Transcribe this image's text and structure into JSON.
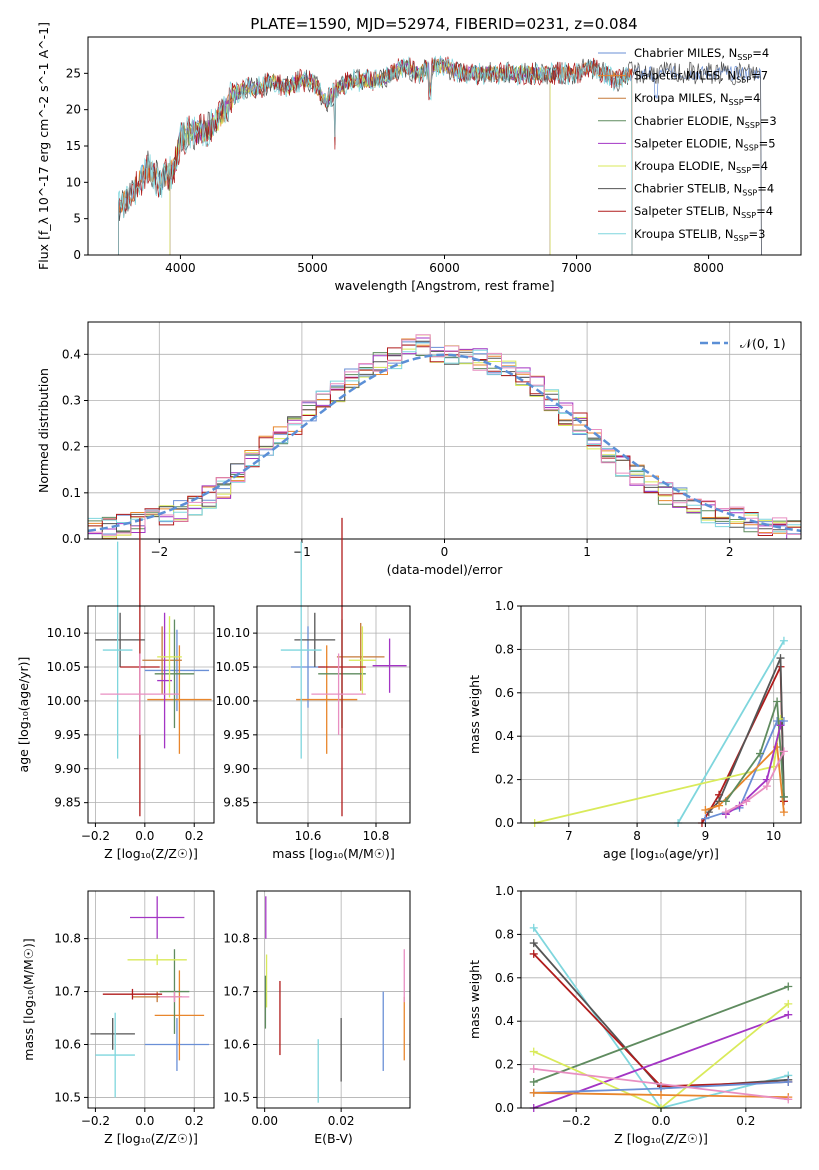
{
  "figure_title": "PLATE=1590, MJD=52974, FIBERID=0231, z=0.084",
  "colors": {
    "Chabrier MILES": "#6a8fd6",
    "Salpeter MILES": "#e8862c",
    "Kroupa MILES": "#c57a3a",
    "Chabrier ELODIE": "#5f8b5f",
    "Salpeter ELODIE": "#a335c4",
    "Kroupa ELODIE": "#d9ea5a",
    "Chabrier STELIB": "#555555",
    "Salpeter STELIB": "#b01c1c",
    "Kroupa STELIB": "#7fd6dd",
    "Normal": "#5b8fd6",
    "Pink": "#e88fc2"
  },
  "chart_data": [
    {
      "type": "line",
      "title": "PLATE=1590, MJD=52974, FIBERID=0231, z=0.084",
      "xlabel": "wavelength [Angstrom, rest frame]",
      "ylabel": "Flux [f_λ 10^-17 erg cm^-2 s^-1 A^-1]",
      "xlim": [
        3300,
        8700
      ],
      "ylim": [
        0,
        30
      ],
      "xticks": [
        "4000",
        "5000",
        "6000",
        "7000",
        "8000"
      ],
      "yticks": [
        "0",
        "5",
        "10",
        "15",
        "20",
        "25"
      ],
      "legend_placement": "right",
      "grid": false,
      "x": [
        3550,
        3650,
        3750,
        3850,
        3950,
        4000,
        4100,
        4200,
        4300,
        4400,
        4500,
        4600,
        4700,
        4800,
        4900,
        5000,
        5100,
        5200,
        5300,
        5400,
        5500,
        5600,
        5700,
        5800,
        5900,
        6000,
        6100,
        6200,
        6300,
        6400,
        6500,
        6600,
        6700,
        6800,
        6900,
        7000,
        7100,
        7200,
        7300,
        7400
      ],
      "flux": [
        7,
        9,
        12,
        10,
        12,
        16,
        17,
        17,
        19,
        22,
        23,
        23,
        24,
        23,
        24,
        24,
        21,
        23,
        24,
        24,
        24,
        25,
        26,
        25,
        26,
        26,
        25,
        25,
        25,
        25,
        25,
        25,
        25,
        25,
        25,
        25,
        26,
        25,
        24,
        25
      ],
      "series": [
        {
          "name": "Chabrier MILES, N_SSP=4",
          "label": "Chabrier MILES, N",
          "sub": "SSP",
          "tail": "=4"
        },
        {
          "name": "Salpeter MILES, N_SSP=7",
          "label": "Salpeter MILES, N",
          "sub": "SSP",
          "tail": "=7"
        },
        {
          "name": "Kroupa MILES, N_SSP=4",
          "label": "Kroupa MILES, N",
          "sub": "SSP",
          "tail": "=4"
        },
        {
          "name": "Chabrier ELODIE, N_SSP=3",
          "label": "Chabrier ELODIE, N",
          "sub": "SSP",
          "tail": "=3"
        },
        {
          "name": "Salpeter ELODIE, N_SSP=5",
          "label": "Salpeter ELODIE, N",
          "sub": "SSP",
          "tail": "=5"
        },
        {
          "name": "Kroupa ELODIE, N_SSP=4",
          "label": "Kroupa ELODIE, N",
          "sub": "SSP",
          "tail": "=4"
        },
        {
          "name": "Chabrier STELIB, N_SSP=4",
          "label": "Chabrier STELIB, N",
          "sub": "SSP",
          "tail": "=4"
        },
        {
          "name": "Salpeter STELIB, N_SSP=4",
          "label": "Salpeter STELIB, N",
          "sub": "SSP",
          "tail": "=4"
        },
        {
          "name": "Kroupa STELIB, N_SSP=3",
          "label": "Kroupa STELIB, N",
          "sub": "SSP",
          "tail": "=3"
        }
      ]
    },
    {
      "type": "line",
      "xlabel": "(data-model)/error",
      "ylabel": "Normed distribution",
      "xlim": [
        -2.5,
        2.5
      ],
      "ylim": [
        0,
        0.47
      ],
      "xticks": [
        "−2",
        "−1",
        "0",
        "1",
        "2"
      ],
      "yticks": [
        "0.0",
        "0.1",
        "0.2",
        "0.3",
        "0.4"
      ],
      "grid": true,
      "legend": "𝒩(0, 1)",
      "legend_placement": "top-right",
      "bin_width": 0.1,
      "histogram_centers": [
        -2.45,
        -2.35,
        -2.25,
        -2.15,
        -2.05,
        -1.95,
        -1.85,
        -1.75,
        -1.65,
        -1.55,
        -1.45,
        -1.35,
        -1.25,
        -1.15,
        -1.05,
        -0.95,
        -0.85,
        -0.75,
        -0.65,
        -0.55,
        -0.45,
        -0.35,
        -0.25,
        -0.15,
        -0.05,
        0.05,
        0.15,
        0.25,
        0.35,
        0.45,
        0.55,
        0.65,
        0.75,
        0.85,
        0.95,
        1.05,
        1.15,
        1.25,
        1.35,
        1.45,
        1.55,
        1.65,
        1.75,
        1.85,
        1.95,
        2.05,
        2.15,
        2.25,
        2.35,
        2.45
      ],
      "histogram_values": [
        0.02,
        0.025,
        0.03,
        0.035,
        0.045,
        0.05,
        0.06,
        0.07,
        0.09,
        0.11,
        0.14,
        0.17,
        0.2,
        0.22,
        0.25,
        0.28,
        0.3,
        0.32,
        0.35,
        0.37,
        0.38,
        0.39,
        0.41,
        0.42,
        0.4,
        0.4,
        0.39,
        0.39,
        0.38,
        0.37,
        0.35,
        0.33,
        0.3,
        0.27,
        0.25,
        0.22,
        0.19,
        0.16,
        0.14,
        0.12,
        0.1,
        0.09,
        0.08,
        0.06,
        0.05,
        0.045,
        0.04,
        0.03,
        0.025,
        0.02
      ]
    },
    {
      "type": "scatter",
      "xlabel": "Z [log₁₀(Z/Z☉)]",
      "ylabel": "age  [log₁₀(age/yr)]",
      "xlim": [
        -0.23,
        0.28
      ],
      "ylim": [
        9.82,
        10.14
      ],
      "xticks": [
        "−0.2",
        "0.0",
        "0.2"
      ],
      "yticks": [
        "9.85",
        "9.90",
        "9.95",
        "10.00",
        "10.05",
        "10.10"
      ],
      "grid": true,
      "points": [
        {
          "series": "Chabrier MILES",
          "x": 0.13,
          "y": 10.045,
          "xerr": 0.13,
          "yerr": 0.06
        },
        {
          "series": "Salpeter MILES",
          "x": 0.14,
          "y": 10.002,
          "xerr": 0.13,
          "yerr": 0.08
        },
        {
          "series": "Kroupa MILES",
          "x": 0.07,
          "y": 10.06,
          "xerr": 0.08,
          "yerr": 0.05
        },
        {
          "series": "Chabrier ELODIE",
          "x": 0.12,
          "y": 10.04,
          "xerr": 0.08,
          "yerr": 0.08
        },
        {
          "series": "Salpeter ELODIE",
          "x": 0.08,
          "y": 10.03,
          "xerr": 0.03,
          "yerr": 0.1
        },
        {
          "series": "Kroupa ELODIE",
          "x": 0.1,
          "y": 10.065,
          "xerr": 0.05,
          "yerr": 0.06
        },
        {
          "series": "Chabrier STELIB",
          "x": -0.1,
          "y": 10.09,
          "xerr": 0.1,
          "yerr": 0.04
        },
        {
          "series": "Salpeter STELIB",
          "x": -0.02,
          "y": 10.05,
          "xerr": 0.08,
          "yerr": 0.22
        },
        {
          "series": "Kroupa STELIB",
          "x": -0.11,
          "y": 10.075,
          "xerr": 0.06,
          "yerr": 0.16
        },
        {
          "series": "Pink",
          "x": -0.02,
          "y": 10.01,
          "xerr": 0.16,
          "yerr": 0.06
        }
      ]
    },
    {
      "type": "scatter",
      "xlabel": "mass [log₁₀(M/M☉)]",
      "ylabel": "",
      "xlim": [
        10.45,
        10.9
      ],
      "ylim": [
        9.82,
        10.14
      ],
      "xticks": [
        "10.6",
        "10.8"
      ],
      "yticks": [
        "9.85",
        "9.90",
        "9.95",
        "10.00",
        "10.05",
        "10.10"
      ],
      "grid": true,
      "points": [
        {
          "series": "Chabrier MILES",
          "x": 10.6,
          "y": 10.05,
          "xerr": 0.05,
          "yerr": 0.06
        },
        {
          "series": "Salpeter MILES",
          "x": 10.655,
          "y": 10.002,
          "xerr": 0.09,
          "yerr": 0.08
        },
        {
          "series": "Kroupa MILES",
          "x": 10.755,
          "y": 10.065,
          "xerr": 0.07,
          "yerr": 0.05
        },
        {
          "series": "Chabrier ELODIE",
          "x": 10.7,
          "y": 10.04,
          "xerr": 0.07,
          "yerr": 0.08
        },
        {
          "series": "Salpeter ELODIE",
          "x": 10.84,
          "y": 10.052,
          "xerr": 0.05,
          "yerr": 0.04
        },
        {
          "series": "Kroupa ELODIE",
          "x": 10.76,
          "y": 10.06,
          "xerr": 0.04,
          "yerr": 0.05
        },
        {
          "series": "Chabrier STELIB",
          "x": 10.62,
          "y": 10.09,
          "xerr": 0.06,
          "yerr": 0.04
        },
        {
          "series": "Salpeter STELIB",
          "x": 10.7,
          "y": 10.05,
          "xerr": 0.07,
          "yerr": 0.22
        },
        {
          "series": "Kroupa STELIB",
          "x": 10.58,
          "y": 10.075,
          "xerr": 0.06,
          "yerr": 0.16
        },
        {
          "series": "Pink",
          "x": 10.69,
          "y": 10.01,
          "xerr": 0.08,
          "yerr": 0.06
        }
      ]
    },
    {
      "type": "line",
      "xlabel": "age  [log₁₀(age/yr)]",
      "ylabel": "mass weight",
      "xlim": [
        6.3,
        10.4
      ],
      "ylim": [
        0,
        1
      ],
      "xticks": [
        "7",
        "8",
        "9",
        "10"
      ],
      "yticks": [
        "0.0",
        "0.2",
        "0.4",
        "0.6",
        "0.8",
        "1.0"
      ],
      "grid": true,
      "lines": [
        {
          "series": "Kroupa STELIB",
          "x": [
            8.6,
            10.15
          ],
          "y": [
            0.0,
            0.84
          ]
        },
        {
          "series": "Salpeter STELIB",
          "x": [
            8.95,
            9.2,
            10.1,
            10.15
          ],
          "y": [
            0.0,
            0.13,
            0.72,
            0.1
          ]
        },
        {
          "series": "Chabrier STELIB",
          "x": [
            9.05,
            9.2,
            10.1,
            10.15
          ],
          "y": [
            0.05,
            0.1,
            0.76,
            0.12
          ]
        },
        {
          "series": "Kroupa ELODIE",
          "x": [
            6.5,
            10.0,
            10.1
          ],
          "y": [
            0.0,
            0.26,
            0.48
          ]
        },
        {
          "series": "Chabrier MILES",
          "x": [
            9.0,
            9.5,
            10.05,
            10.15
          ],
          "y": [
            0.02,
            0.07,
            0.47,
            0.47
          ]
        },
        {
          "series": "Salpeter MILES",
          "x": [
            9.0,
            9.2,
            10.05,
            10.15
          ],
          "y": [
            0.06,
            0.08,
            0.35,
            0.05
          ]
        },
        {
          "series": "Chabrier ELODIE",
          "x": [
            9.3,
            9.8,
            10.05,
            10.15
          ],
          "y": [
            0.1,
            0.32,
            0.56,
            0.12
          ]
        },
        {
          "series": "Salpeter ELODIE",
          "x": [
            9.3,
            9.5,
            9.9,
            10.1
          ],
          "y": [
            0.04,
            0.08,
            0.2,
            0.45
          ]
        },
        {
          "series": "Pink",
          "x": [
            9.3,
            9.6,
            9.9,
            10.15
          ],
          "y": [
            0.05,
            0.1,
            0.17,
            0.33
          ]
        }
      ]
    },
    {
      "type": "scatter",
      "xlabel": "Z [log₁₀(Z/Z☉)]",
      "ylabel": "mass [log₁₀(M/M☉)]",
      "xlim": [
        -0.23,
        0.28
      ],
      "ylim": [
        10.48,
        10.89
      ],
      "xticks": [
        "−0.2",
        "0.0",
        "0.2"
      ],
      "yticks": [
        "10.5",
        "10.6",
        "10.7",
        "10.8"
      ],
      "grid": true,
      "points": [
        {
          "series": "Chabrier MILES",
          "x": 0.13,
          "y": 10.6,
          "xerr": 0.13,
          "yerr": 0.05
        },
        {
          "series": "Salpeter MILES",
          "x": 0.14,
          "y": 10.655,
          "xerr": 0.1,
          "yerr": 0.085
        },
        {
          "series": "Kroupa MILES",
          "x": 0.05,
          "y": 10.69,
          "xerr": 0.1,
          "yerr": 0.01
        },
        {
          "series": "Chabrier ELODIE",
          "x": 0.12,
          "y": 10.7,
          "xerr": 0.06,
          "yerr": 0.08
        },
        {
          "series": "Salpeter ELODIE",
          "x": 0.05,
          "y": 10.84,
          "xerr": 0.11,
          "yerr": 0.04
        },
        {
          "series": "Kroupa ELODIE",
          "x": 0.05,
          "y": 10.76,
          "xerr": 0.12,
          "yerr": 0.01
        },
        {
          "series": "Chabrier STELIB",
          "x": -0.13,
          "y": 10.62,
          "xerr": 0.09,
          "yerr": 0.03
        },
        {
          "series": "Salpeter STELIB",
          "x": -0.05,
          "y": 10.695,
          "xerr": 0.12,
          "yerr": 0.01
        },
        {
          "series": "Kroupa STELIB",
          "x": -0.12,
          "y": 10.58,
          "xerr": 0.08,
          "yerr": 0.08
        },
        {
          "series": "Pink",
          "x": 0.12,
          "y": 10.69,
          "xerr": 0.06,
          "yerr": 0.01
        }
      ]
    },
    {
      "type": "scatter",
      "xlabel": "E(B-V)",
      "ylabel": "",
      "xlim": [
        -0.002,
        0.038
      ],
      "ylim": [
        10.48,
        10.89
      ],
      "xticks": [
        "0.00",
        "0.02"
      ],
      "yticks": [
        "10.5",
        "10.6",
        "10.7",
        "10.8"
      ],
      "grid": true,
      "points": [
        {
          "series": "Salpeter ELODIE",
          "x": 0.0003,
          "y": 10.84,
          "yerr": 0.04
        },
        {
          "series": "Kroupa ELODIE",
          "x": 0.0005,
          "y": 10.72,
          "yerr": 0.05
        },
        {
          "series": "Chabrier ELODIE",
          "x": 0.0002,
          "y": 10.68,
          "yerr": 0.05
        },
        {
          "series": "Salpeter STELIB",
          "x": 0.004,
          "y": 10.65,
          "yerr": 0.07
        },
        {
          "series": "Kroupa STELIB",
          "x": 0.014,
          "y": 10.55,
          "yerr": 0.06
        },
        {
          "series": "Chabrier STELIB",
          "x": 0.02,
          "y": 10.59,
          "yerr": 0.06
        },
        {
          "series": "Chabrier MILES",
          "x": 0.031,
          "y": 10.625,
          "yerr": 0.075
        },
        {
          "series": "Salpeter MILES",
          "x": 0.0365,
          "y": 10.63,
          "yerr": 0.06
        },
        {
          "series": "Pink",
          "x": 0.0365,
          "y": 10.73,
          "yerr": 0.05
        }
      ]
    },
    {
      "type": "line",
      "xlabel": "Z [log₁₀(Z/Z☉)]",
      "ylabel": "mass weight",
      "xlim": [
        -0.33,
        0.33
      ],
      "ylim": [
        0,
        1
      ],
      "xticks": [
        "−0.2",
        "0.0",
        "0.2"
      ],
      "yticks": [
        "0.0",
        "0.2",
        "0.4",
        "0.6",
        "0.8",
        "1.0"
      ],
      "grid": true,
      "lines": [
        {
          "series": "Kroupa STELIB",
          "x": [
            -0.3,
            0.0,
            0.3
          ],
          "y": [
            0.83,
            0.0,
            0.15
          ]
        },
        {
          "series": "Chabrier STELIB",
          "x": [
            -0.3,
            0.0,
            0.3
          ],
          "y": [
            0.76,
            0.09,
            0.13
          ]
        },
        {
          "series": "Salpeter STELIB",
          "x": [
            -0.3,
            0.0,
            0.3
          ],
          "y": [
            0.71,
            0.1,
            0.12
          ]
        },
        {
          "series": "Chabrier ELODIE",
          "x": [
            -0.3,
            0.3
          ],
          "y": [
            0.12,
            0.56
          ]
        },
        {
          "series": "Salpeter ELODIE",
          "x": [
            -0.3,
            0.3
          ],
          "y": [
            0.0,
            0.43
          ]
        },
        {
          "series": "Kroupa ELODIE",
          "x": [
            -0.3,
            0.0,
            0.3
          ],
          "y": [
            0.26,
            0.0,
            0.48
          ]
        },
        {
          "series": "Chabrier MILES",
          "x": [
            -0.3,
            0.0,
            0.3
          ],
          "y": [
            0.07,
            0.09,
            0.12
          ]
        },
        {
          "series": "Salpeter MILES",
          "x": [
            -0.3,
            0.0,
            0.3
          ],
          "y": [
            0.07,
            0.06,
            0.05
          ]
        },
        {
          "series": "Pink",
          "x": [
            -0.3,
            0.3
          ],
          "y": [
            0.18,
            0.04
          ]
        }
      ]
    }
  ]
}
